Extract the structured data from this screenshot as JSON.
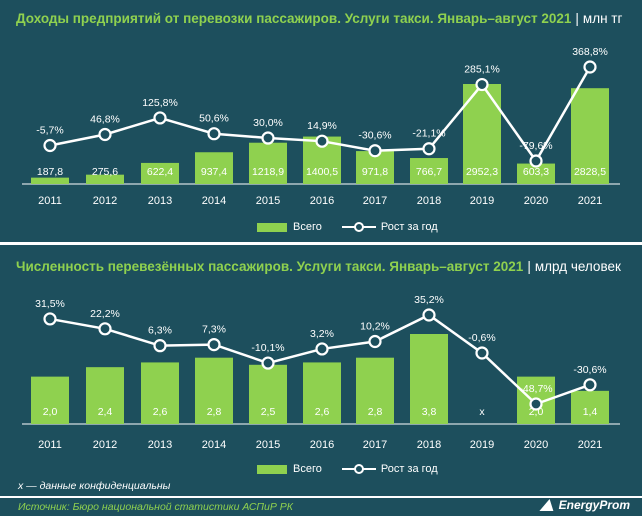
{
  "chart_data": [
    {
      "type": "bar",
      "title": "Доходы предприятий от перевозки пассажиров. Услуги такси. Январь–август 2021",
      "unit": "млн тг",
      "categories": [
        "2011",
        "2012",
        "2013",
        "2014",
        "2015",
        "2016",
        "2017",
        "2018",
        "2019",
        "2020",
        "2021"
      ],
      "bar_labels": [
        "187,8",
        "275,6",
        "622,4",
        "937,4",
        "1218,9",
        "1400,5",
        "971,8",
        "766,7",
        "2952,3",
        "603,3",
        "2828,5"
      ],
      "line_labels": [
        "-5,7%",
        "46,8%",
        "125,8%",
        "50,6%",
        "30,0%",
        "14,9%",
        "-30,6%",
        "-21,1%",
        "285,1%",
        "-79,6%",
        "368,8%"
      ],
      "series": [
        {
          "name": "Всего",
          "type": "bar",
          "values": [
            187.8,
            275.6,
            622.4,
            937.4,
            1218.9,
            1400.5,
            971.8,
            766.7,
            2952.3,
            603.3,
            2828.5
          ]
        },
        {
          "name": "Рост за год",
          "type": "line",
          "values": [
            -5.7,
            46.8,
            125.8,
            50.6,
            30.0,
            14.9,
            -30.6,
            -21.1,
            285.1,
            -79.6,
            368.8
          ]
        }
      ],
      "legend": "bottom",
      "grid": false
    },
    {
      "type": "bar",
      "title": "Численность перевезённых пассажиров. Услуги такси. Январь–август 2021",
      "unit": "млрд человек",
      "categories": [
        "2011",
        "2012",
        "2013",
        "2014",
        "2015",
        "2016",
        "2017",
        "2018",
        "2019",
        "2020",
        "2021"
      ],
      "bar_labels": [
        "2,0",
        "2,4",
        "2,6",
        "2,8",
        "2,5",
        "2,6",
        "2,8",
        "3,8",
        "x",
        "2,0",
        "1,4"
      ],
      "line_labels": [
        "31,5%",
        "22,2%",
        "6,3%",
        "7,3%",
        "-10,1%",
        "3,2%",
        "10,2%",
        "35,2%",
        "-0,6%",
        "-48,7%",
        "-30,6%"
      ],
      "series": [
        {
          "name": "Всего",
          "type": "bar",
          "values": [
            2.0,
            2.4,
            2.6,
            2.8,
            2.5,
            2.6,
            2.8,
            3.8,
            null,
            2.0,
            1.4
          ]
        },
        {
          "name": "Рост за год",
          "type": "line",
          "values": [
            31.5,
            22.2,
            6.3,
            7.3,
            -10.1,
            3.2,
            10.2,
            35.2,
            -0.6,
            -48.7,
            -30.6
          ]
        }
      ],
      "legend": "bottom",
      "grid": false
    }
  ],
  "note": "x — данные конфиденциальны",
  "source": "Источник: Бюро национальной статистики АСПиР РК",
  "logo": "EnergyProm",
  "colors": {
    "background": "#1d4f5d",
    "bar": "#8fd14f",
    "line": "#ffffff",
    "title": "#8fd14f"
  }
}
